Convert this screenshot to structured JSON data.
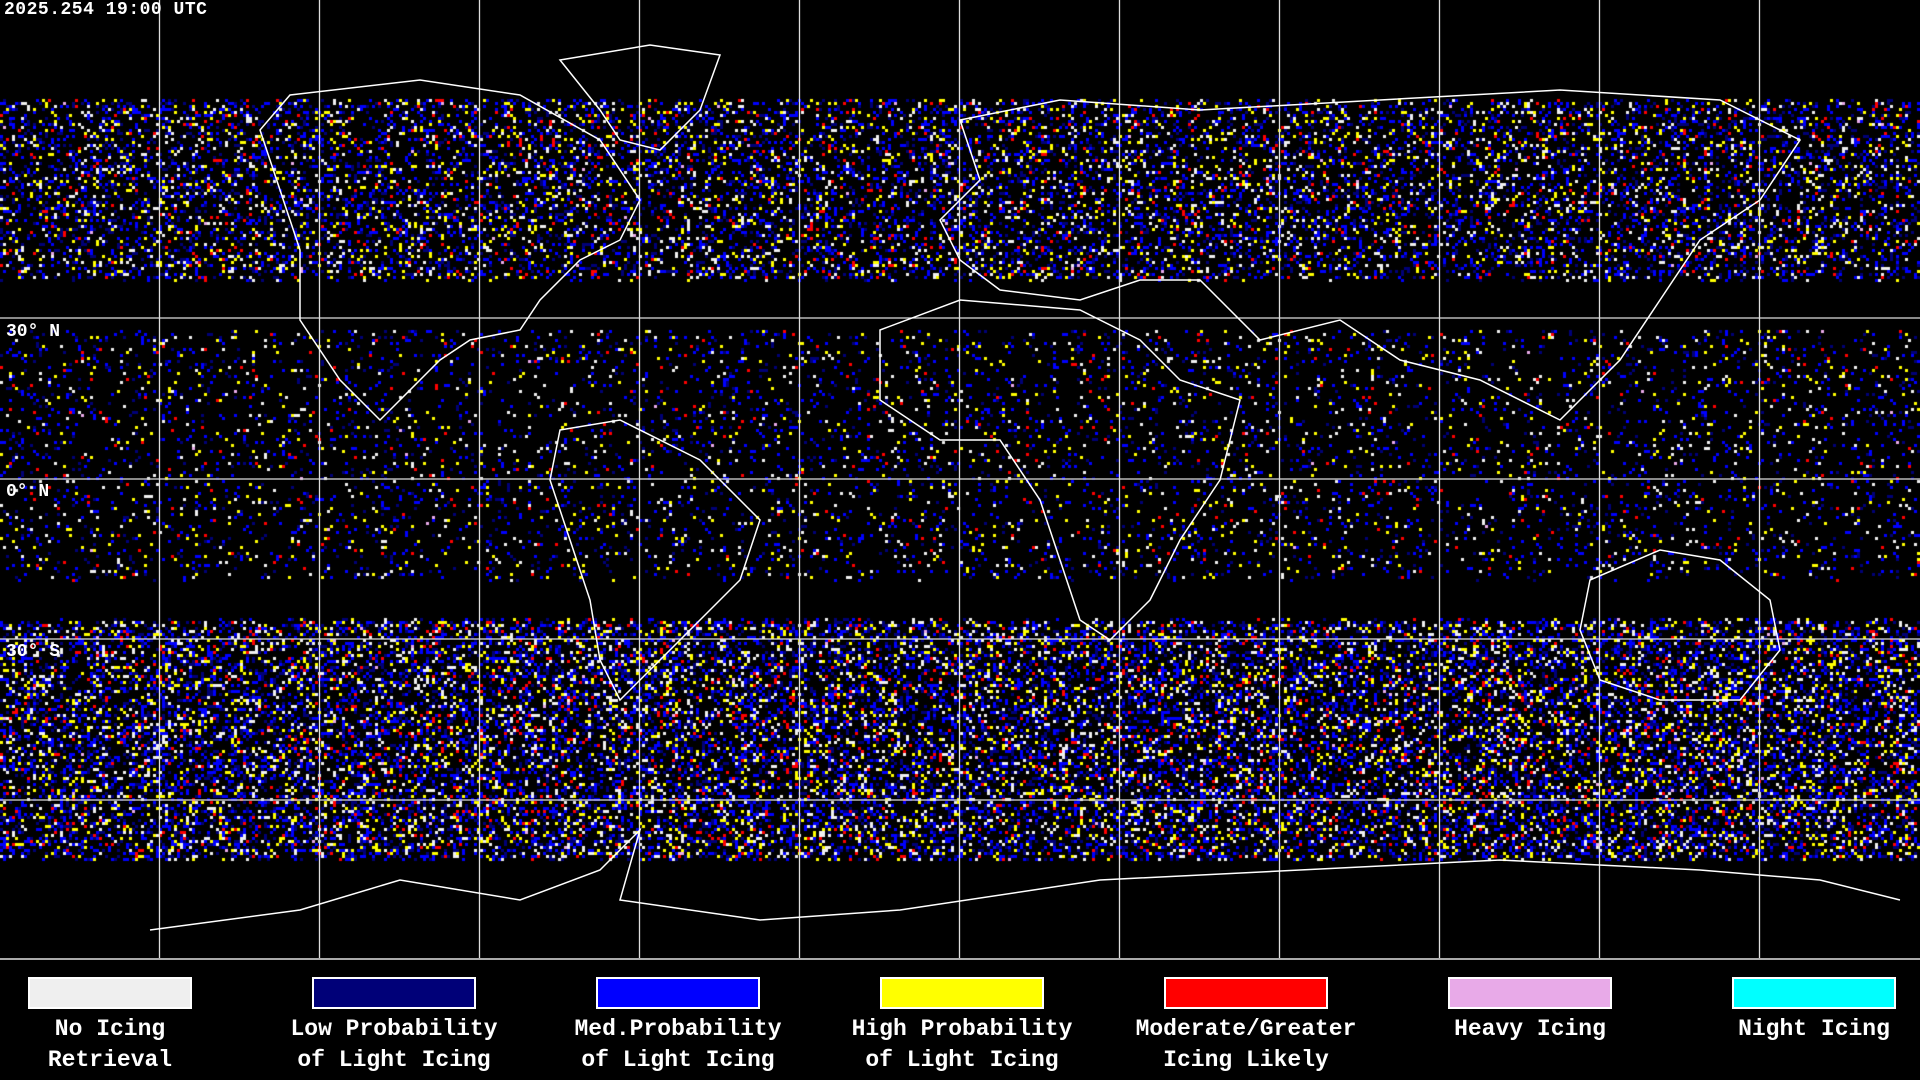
{
  "timestamp": "2025.254 19:00 UTC",
  "latitude_labels": [
    "30° N",
    "0° N",
    "30° S"
  ],
  "legend": [
    {
      "line1": "No Icing",
      "line2": "Retrieval",
      "color": "#efefef"
    },
    {
      "line1": "Low Probability",
      "line2": "of Light Icing",
      "color": "#000078"
    },
    {
      "line1": "Med.Probability",
      "line2": "of Light Icing",
      "color": "#0000ff"
    },
    {
      "line1": "High Probability",
      "line2": "of Light Icing",
      "color": "#ffff00"
    },
    {
      "line1": "Moderate/Greater",
      "line2": "Icing Likely",
      "color": "#ff0000"
    },
    {
      "line1": "Heavy Icing",
      "line2": "",
      "color": "#e8aae8"
    },
    {
      "line1": "Night Icing",
      "line2": "",
      "color": "#00ffff"
    }
  ]
}
